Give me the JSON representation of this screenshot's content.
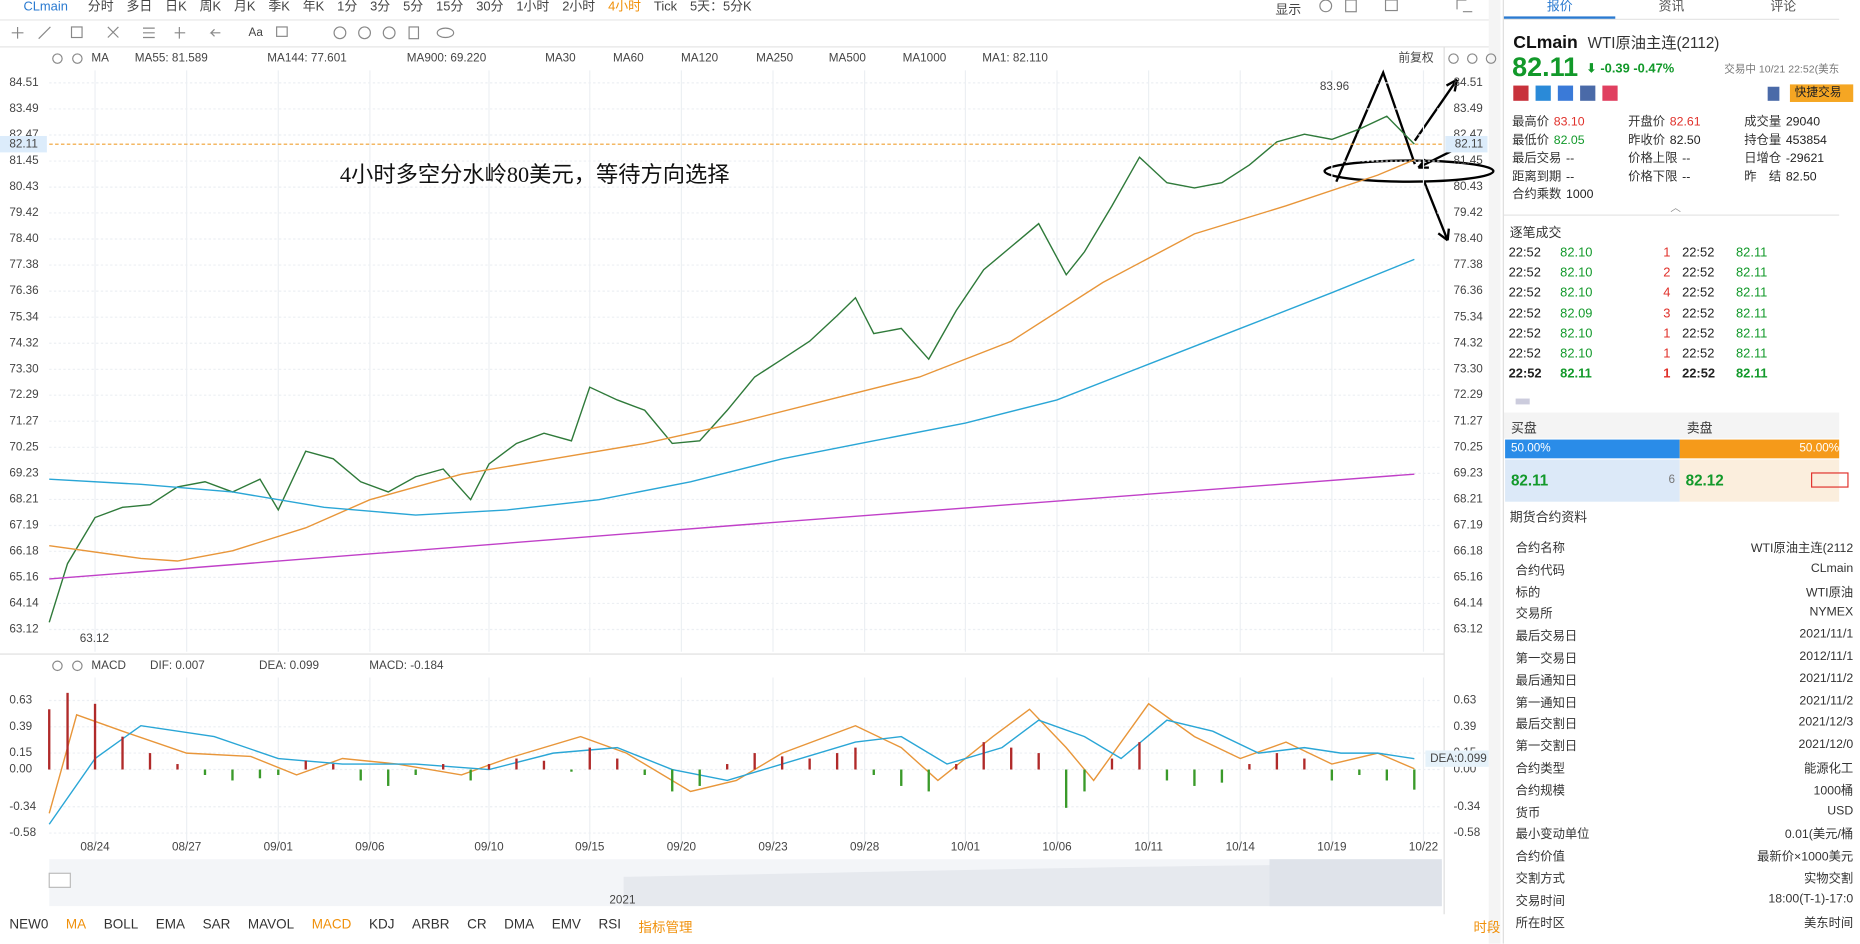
{
  "toolbar": {
    "symbol": "CLmain",
    "periods": [
      "分时",
      "多日",
      "日K",
      "周K",
      "月K",
      "季K",
      "年K",
      "1分",
      "3分",
      "5分",
      "15分",
      "30分",
      "1小时",
      "2小时",
      "4小时",
      "Tick",
      "5天：5分K"
    ],
    "active": 14,
    "display": "显示",
    "text_tool": "Aa"
  },
  "chart_data": [
    {
      "type": "line",
      "indicator": "MA",
      "restore": "前复权",
      "annotation": "4小时多空分水岭80美元，等待方向选择",
      "high_label": 83.96,
      "low_label": 63.12,
      "current_price": 82.11,
      "xlim": [
        0,
        152
      ],
      "ylim": [
        62.25,
        85.0
      ],
      "yticks": [
        84.51,
        83.49,
        82.47,
        81.45,
        80.43,
        79.42,
        {
          "value": 78.4,
          "label": "78.40"
        },
        77.38,
        76.36,
        75.34,
        74.32,
        {
          "value": 73.3,
          "label": "73.30"
        },
        72.29,
        71.27,
        70.25,
        69.23,
        68.21,
        67.19,
        66.18,
        65.16,
        64.14,
        63.12
      ],
      "grid": true,
      "series": [
        {
          "color": "#2f7a3a",
          "x": [
            0,
            2,
            5,
            8,
            11,
            14,
            17,
            20,
            23,
            25,
            28,
            31,
            34,
            37,
            40,
            43,
            46,
            48,
            51,
            54,
            57,
            59,
            62,
            65,
            68,
            71,
            74,
            77,
            80,
            83,
            86,
            88,
            90,
            93,
            96,
            99,
            102,
            105,
            108,
            111,
            113,
            116,
            119,
            122,
            125,
            128,
            131,
            134,
            137,
            140,
            143,
            146,
            149
          ],
          "values": [
            63.4,
            65.7,
            67.5,
            67.9,
            68.0,
            68.7,
            68.9,
            68.5,
            69.0,
            67.8,
            70.1,
            69.8,
            68.9,
            68.5,
            69.1,
            69.4,
            68.2,
            69.6,
            70.4,
            70.8,
            70.5,
            72.6,
            72.1,
            71.7,
            70.4,
            70.5,
            71.7,
            73.0,
            73.7,
            74.4,
            75.4,
            76.1,
            74.7,
            74.9,
            73.7,
            75.6,
            77.2,
            78.1,
            79.0,
            77.0,
            77.9,
            79.7,
            81.6,
            80.6,
            80.4,
            80.6,
            81.3,
            82.2,
            82.5,
            82.3,
            82.7,
            83.2,
            82.11
          ]
        },
        {
          "name": "MA55: 81.589",
          "color": "#e8963a",
          "x": [
            0,
            10,
            14,
            20,
            28,
            35,
            45,
            55,
            65,
            75,
            85,
            95,
            105,
            115,
            125,
            135,
            145,
            149
          ],
          "values": [
            66.4,
            65.9,
            65.8,
            66.2,
            67.1,
            68.2,
            69.2,
            69.8,
            70.4,
            71.2,
            72.1,
            73.0,
            74.4,
            76.7,
            78.6,
            79.7,
            80.9,
            81.5
          ]
        },
        {
          "name": "MA144: 77.601",
          "color": "#2aa6d6",
          "x": [
            0,
            10,
            20,
            30,
            40,
            50,
            60,
            70,
            80,
            90,
            100,
            110,
            120,
            130,
            140,
            149
          ],
          "values": [
            69.0,
            68.8,
            68.5,
            67.9,
            67.6,
            67.8,
            68.2,
            68.9,
            69.8,
            70.5,
            71.2,
            72.1,
            73.5,
            74.9,
            76.3,
            77.6
          ]
        },
        {
          "name": "MA900: 69.220",
          "color": "#c040c8",
          "x": [
            0,
            75,
            149
          ],
          "values": [
            65.1,
            67.2,
            69.2
          ]
        }
      ],
      "inactive_ma": [
        {
          "name": "MA30",
          "color": "#c8ccd4"
        },
        {
          "name": "MA60",
          "color": "#b8d8ee"
        },
        {
          "name": "MA120",
          "color": "#f0c4d8"
        },
        {
          "name": "MA250",
          "color": "#b8ecf4"
        },
        {
          "name": "MA500",
          "color": "#f4e2b0"
        },
        {
          "name": "MA1000",
          "color": "#c8ccd4"
        }
      ],
      "ma1": "MA1: 82.110"
    },
    {
      "type": "macd",
      "indicator": "MACD",
      "xlim": [
        0,
        152
      ],
      "ylim": [
        -0.68,
        0.84
      ],
      "yticks": [
        0.63,
        0.39,
        0.15,
        {
          "value": 0,
          "label": "0.00"
        },
        -0.34,
        -0.58
      ],
      "xticks": [
        {
          "value": 5,
          "label": "08/24"
        },
        {
          "value": 15,
          "label": "08/27"
        },
        {
          "value": 25,
          "label": "09/01"
        },
        {
          "value": 35,
          "label": "09/06"
        },
        {
          "value": 48,
          "label": "09/10"
        },
        {
          "value": 59,
          "label": "09/15"
        },
        {
          "value": 69,
          "label": "09/20"
        },
        {
          "value": 79,
          "label": "09/23"
        },
        {
          "value": 89,
          "label": "09/28"
        },
        {
          "value": 100,
          "label": "10/01"
        },
        {
          "value": 110,
          "label": "10/06"
        },
        {
          "value": 120,
          "label": "10/11"
        },
        {
          "value": 130,
          "label": "10/14"
        },
        {
          "value": 140,
          "label": "10/19"
        },
        {
          "value": 150,
          "label": "10/22"
        }
      ],
      "grid": true,
      "series": [
        {
          "name": "DIF: 0.007",
          "color": "#e8963a",
          "x": [
            0,
            3,
            8,
            15,
            22,
            27,
            32,
            38,
            45,
            50,
            58,
            63,
            70,
            75,
            80,
            88,
            93,
            97,
            103,
            107,
            111,
            114,
            120,
            125,
            130,
            135,
            140,
            145,
            149
          ],
          "values": [
            -0.4,
            0.5,
            0.35,
            0.15,
            0.12,
            -0.05,
            0.1,
            0.05,
            -0.05,
            0.1,
            0.3,
            0.15,
            -0.2,
            -0.1,
            0.15,
            0.4,
            0.2,
            -0.1,
            0.3,
            0.55,
            0.2,
            -0.1,
            0.6,
            0.3,
            0.1,
            0.25,
            0.05,
            0.15,
            0.007
          ]
        },
        {
          "name": "DEA: 0.099",
          "color": "#2aa6d6",
          "last_label": "DEA:0.099",
          "x": [
            0,
            5,
            10,
            18,
            25,
            32,
            40,
            48,
            55,
            62,
            68,
            74,
            80,
            88,
            93,
            98,
            104,
            108,
            113,
            117,
            122,
            127,
            132,
            137,
            141,
            145,
            149
          ],
          "values": [
            -0.5,
            0.1,
            0.4,
            0.3,
            0.1,
            0.05,
            0.05,
            0.0,
            0.15,
            0.2,
            0.0,
            -0.1,
            0.05,
            0.25,
            0.3,
            0.05,
            0.2,
            0.45,
            0.3,
            0.1,
            0.45,
            0.35,
            0.15,
            0.2,
            0.15,
            0.15,
            0.099
          ]
        },
        {
          "name": "MACD: -0.184",
          "color": "#d050c0",
          "bars": true,
          "up_color": "#b02a2a",
          "down_color": "#3a9a2a",
          "x": [
            0,
            2,
            5,
            8,
            11,
            14,
            17,
            20,
            23,
            25,
            28,
            31,
            34,
            37,
            40,
            43,
            46,
            48,
            51,
            54,
            57,
            59,
            62,
            65,
            68,
            71,
            74,
            77,
            80,
            83,
            86,
            88,
            90,
            93,
            96,
            99,
            102,
            105,
            108,
            111,
            113,
            116,
            119,
            122,
            125,
            128,
            131,
            134,
            137,
            140,
            143,
            146,
            149
          ],
          "values": [
            0.55,
            0.7,
            0.6,
            0.3,
            0.15,
            0.05,
            -0.05,
            -0.1,
            -0.08,
            -0.05,
            0.08,
            0.05,
            -0.1,
            -0.15,
            -0.05,
            0.05,
            -0.1,
            0.05,
            0.1,
            0.08,
            -0.02,
            0.2,
            0.1,
            -0.05,
            -0.2,
            -0.15,
            0.05,
            0.15,
            0.12,
            0.1,
            0.15,
            0.2,
            -0.05,
            -0.15,
            -0.2,
            0.05,
            0.25,
            0.2,
            0.15,
            -0.35,
            -0.2,
            0.1,
            0.25,
            -0.1,
            -0.15,
            -0.12,
            0.05,
            0.15,
            0.1,
            -0.1,
            -0.05,
            -0.1,
            -0.184
          ]
        }
      ]
    }
  ],
  "navigator": {
    "year": "2021"
  },
  "indicator_tabs": {
    "items": [
      "NEW0",
      "MA",
      "BOLL",
      "EMA",
      "SAR",
      "MAVOL",
      "MACD",
      "KDJ",
      "ARBR",
      "CR",
      "DMA",
      "EMV",
      "RSI",
      "指标管理"
    ],
    "active": [
      1,
      6,
      13
    ],
    "period": "时段"
  },
  "panel": {
    "tabs": [
      "报价",
      "资讯",
      "评论"
    ],
    "symbol": "CLmain",
    "name": "WTI原油主连(2112)",
    "price": "82.11",
    "arrow": "⬇",
    "change": "-0.39",
    "percent": "-0.47%",
    "status": "交易中 10/21 22:52(美东",
    "quick_trade": "快捷交易",
    "fields": [
      {
        "label": "最高价",
        "value": "83.10",
        "color": "#e0302a"
      },
      {
        "label": "开盘价",
        "value": "82.61",
        "color": "#e0302a"
      },
      {
        "label": "成交量",
        "value": "29040"
      },
      {
        "label": "最低价",
        "value": "82.05",
        "color": "#12992a"
      },
      {
        "label": "昨收价",
        "value": "82.50"
      },
      {
        "label": "持仓量",
        "value": "453854"
      },
      {
        "label": "最后交易",
        "value": "--"
      },
      {
        "label": "价格上限",
        "value": "--"
      },
      {
        "label": "日增仓",
        "value": "-29621"
      },
      {
        "label": "距离到期",
        "value": "--"
      },
      {
        "label": "价格下限",
        "value": "--"
      },
      {
        "label": "昨　结",
        "value": "82.50"
      },
      {
        "label": "合约乘数",
        "value": "1000"
      }
    ],
    "trades_title": "逐笔成交",
    "trades": [
      [
        "22:52",
        "82.10",
        "1",
        "22:52",
        "82.11"
      ],
      [
        "22:52",
        "82.10",
        "2",
        "22:52",
        "82.11"
      ],
      [
        "22:52",
        "82.10",
        "4",
        "22:52",
        "82.11"
      ],
      [
        "22:52",
        "82.09",
        "3",
        "22:52",
        "82.11"
      ],
      [
        "22:52",
        "82.10",
        "1",
        "22:52",
        "82.11"
      ],
      [
        "22:52",
        "82.10",
        "1",
        "22:52",
        "82.11"
      ],
      [
        "22:52",
        "82.11",
        "1",
        "22:52",
        "82.11"
      ]
    ],
    "bid_title": "买盘",
    "ask_title": "卖盘",
    "bid_ratio": "50.00%",
    "ask_ratio": "50.00%",
    "bid": "82.11",
    "bid_size": "6",
    "ask": "82.12",
    "info_title": "期货合约资料",
    "info": [
      [
        "合约名称",
        "WTI原油主连(2112"
      ],
      [
        "合约代码",
        "CLmain"
      ],
      [
        "标的",
        "WTI原油"
      ],
      [
        "交易所",
        "NYMEX"
      ],
      [
        "最后交易日",
        "2021/11/1"
      ],
      [
        "第一交易日",
        "2012/11/1"
      ],
      [
        "最后通知日",
        "2021/11/2"
      ],
      [
        "第一通知日",
        "2021/11/2"
      ],
      [
        "最后交割日",
        "2021/12/3"
      ],
      [
        "第一交割日",
        "2021/12/0"
      ],
      [
        "合约类型",
        "能源化工"
      ],
      [
        "合约规模",
        "1000桶"
      ],
      [
        "货币",
        "USD"
      ],
      [
        "最小变动单位",
        "0.01(美元/桶"
      ],
      [
        "合约价值",
        "最新价×1000美元"
      ],
      [
        "交割方式",
        "实物交割"
      ],
      [
        "交易时间",
        "18:00(T-1)-17:0"
      ],
      [
        "所在时区",
        "美东时间"
      ]
    ]
  }
}
